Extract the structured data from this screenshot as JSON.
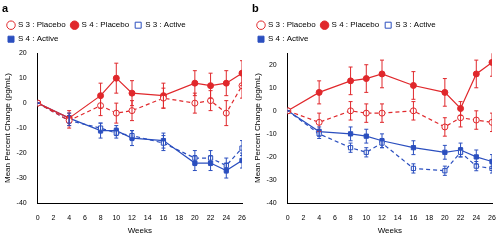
{
  "chart_data": [
    {
      "type": "line",
      "title": "a",
      "x_label": "Weeks",
      "y_label": "Mean Percent Change (pg/mL)",
      "x": [
        0,
        4,
        8,
        10,
        12,
        16,
        20,
        22,
        24,
        26
      ],
      "xlim": [
        0,
        26
      ],
      "xticks": [
        0,
        2,
        4,
        6,
        8,
        10,
        12,
        14,
        16,
        18,
        20,
        22,
        24,
        26
      ],
      "ylim": [
        -40,
        20
      ],
      "yticks": [
        -40,
        -30,
        -20,
        -10,
        0,
        10,
        20
      ],
      "grid": false,
      "legend": "top",
      "series": [
        {
          "name": "S 3 : Placebo",
          "color": "#e0282c",
          "marker": "circle_open",
          "line_style": "dashed",
          "values": [
            0,
            -7,
            -1,
            -4,
            -3,
            2,
            0,
            1,
            -4,
            7
          ],
          "errors": [
            0,
            3,
            4,
            4,
            4,
            4,
            4,
            4,
            5,
            5
          ]
        },
        {
          "name": "S 4 : Placebo",
          "color": "#e0282c",
          "marker": "circle",
          "line_style": "solid",
          "values": [
            0,
            -6,
            3,
            10,
            4,
            3,
            8,
            7,
            8,
            12
          ],
          "errors": [
            0,
            3,
            5,
            6,
            5,
            5,
            5,
            5,
            5,
            5
          ]
        },
        {
          "name": "S 3 : Active",
          "color": "#2b4fbf",
          "marker": "square_open",
          "line_style": "dashed",
          "values": [
            0,
            -7,
            -10,
            -12,
            -13,
            -16,
            -22,
            -22,
            -25,
            -18
          ],
          "errors": [
            0,
            2,
            2,
            2,
            2,
            3,
            3,
            3,
            3,
            3
          ]
        },
        {
          "name": "S 4 : Active",
          "color": "#2b4fbf",
          "marker": "square",
          "line_style": "solid",
          "values": [
            0,
            -6,
            -11,
            -11,
            -14,
            -15,
            -24,
            -24,
            -27,
            -23
          ],
          "errors": [
            0,
            2,
            3,
            2,
            3,
            3,
            3,
            3,
            3,
            3
          ]
        }
      ]
    },
    {
      "type": "line",
      "title": "b",
      "x_label": "Weeks",
      "y_label": "Mean Percent Change (pg/mL)",
      "x": [
        0,
        4,
        8,
        10,
        12,
        16,
        20,
        22,
        24,
        26
      ],
      "xlim": [
        0,
        26
      ],
      "xticks": [
        0,
        2,
        4,
        6,
        8,
        10,
        12,
        14,
        16,
        18,
        20,
        22,
        24,
        26
      ],
      "ylim": [
        -40,
        25
      ],
      "yticks": [
        -40,
        -30,
        -20,
        -10,
        0,
        10,
        20
      ],
      "grid": false,
      "legend": "top",
      "series": [
        {
          "name": "S 3 : Placebo",
          "color": "#e0282c",
          "marker": "circle_open",
          "line_style": "dashed",
          "values": [
            0,
            -5,
            0,
            -1,
            -1,
            0,
            -7,
            -3,
            -4,
            -5
          ],
          "errors": [
            0,
            4,
            4,
            4,
            4,
            4,
            4,
            4,
            4,
            4
          ]
        },
        {
          "name": "S 4 : Placebo",
          "color": "#e0282c",
          "marker": "circle",
          "line_style": "solid",
          "values": [
            0,
            8,
            13,
            14,
            16,
            11,
            8,
            1,
            16,
            21
          ],
          "errors": [
            0,
            5,
            6,
            6,
            6,
            6,
            6,
            3,
            6,
            6
          ]
        },
        {
          "name": "S 3 : Active",
          "color": "#2b4fbf",
          "marker": "square_open",
          "line_style": "dashed",
          "values": [
            0,
            -10,
            -16,
            -18,
            -14,
            -25,
            -26,
            -18,
            -24,
            -25
          ],
          "errors": [
            0,
            2,
            2,
            2,
            2,
            2,
            2,
            2,
            2,
            2
          ]
        },
        {
          "name": "S 4 : Active",
          "color": "#2b4fbf",
          "marker": "square",
          "line_style": "solid",
          "values": [
            0,
            -9,
            -10,
            -11,
            -13,
            -16,
            -18,
            -17,
            -20,
            -22
          ],
          "errors": [
            0,
            2,
            3,
            3,
            3,
            3,
            3,
            3,
            3,
            3
          ]
        }
      ]
    }
  ]
}
